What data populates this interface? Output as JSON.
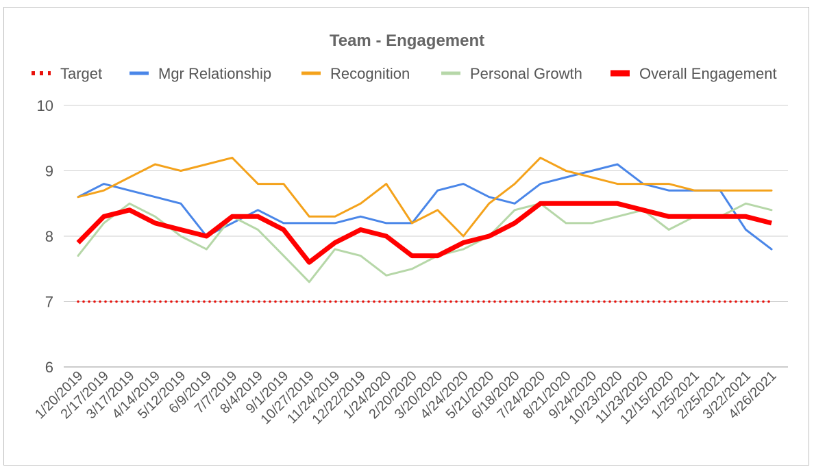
{
  "chart_data": {
    "type": "line",
    "title": "Team - Engagement",
    "xlabel": "",
    "ylabel": "",
    "ylim": [
      6,
      10
    ],
    "yticks": [
      "6",
      "7",
      "8",
      "9",
      "10"
    ],
    "grid": true,
    "legend_position": "top",
    "categories": [
      "1/20/2019",
      "2/17/2019",
      "3/17/2019",
      "4/14/2019",
      "5/12/2019",
      "6/9/2019",
      "7/7/2019",
      "8/4/2019",
      "9/1/2019",
      "10/27/2019",
      "11/24/2019",
      "12/22/2019",
      "1/24/2020",
      "2/20/2020",
      "3/20/2020",
      "4/24/2020",
      "5/21/2020",
      "6/18/2020",
      "7/24/2020",
      "8/21/2020",
      "9/24/2020",
      "10/23/2020",
      "11/23/2020",
      "12/15/2020",
      "1/25/2021",
      "2/25/2021",
      "3/22/2021",
      "4/26/2021"
    ],
    "series": [
      {
        "name": "Target",
        "color": "#e8120c",
        "style": "dotted",
        "values": [
          7,
          7,
          7,
          7,
          7,
          7,
          7,
          7,
          7,
          7,
          7,
          7,
          7,
          7,
          7,
          7,
          7,
          7,
          7,
          7,
          7,
          7,
          7,
          7,
          7,
          7,
          7,
          7
        ]
      },
      {
        "name": "Mgr Relationship",
        "color": "#4a86e8",
        "style": "solid",
        "values": [
          8.6,
          8.8,
          8.7,
          8.6,
          8.5,
          8.0,
          8.2,
          8.4,
          8.2,
          8.2,
          8.2,
          8.3,
          8.2,
          8.2,
          8.7,
          8.8,
          8.6,
          8.5,
          8.8,
          8.9,
          9.0,
          9.1,
          8.8,
          8.7,
          8.7,
          8.7,
          8.1,
          7.8
        ]
      },
      {
        "name": "Recognition",
        "color": "#f4a21b",
        "style": "solid",
        "values": [
          8.6,
          8.7,
          8.9,
          9.1,
          9.0,
          9.1,
          9.2,
          8.8,
          8.8,
          8.3,
          8.3,
          8.5,
          8.8,
          8.2,
          8.4,
          8.0,
          8.5,
          8.8,
          9.2,
          9.0,
          8.9,
          8.8,
          8.8,
          8.8,
          8.7,
          8.7,
          8.7,
          8.7
        ]
      },
      {
        "name": "Personal Growth",
        "color": "#b6d7a8",
        "style": "solid",
        "values": [
          7.7,
          8.2,
          8.5,
          8.3,
          8.0,
          7.8,
          8.3,
          8.1,
          7.7,
          7.3,
          7.8,
          7.7,
          7.4,
          7.5,
          7.7,
          7.8,
          8.0,
          8.4,
          8.5,
          8.2,
          8.2,
          8.3,
          8.4,
          8.1,
          8.3,
          8.3,
          8.5,
          8.4
        ]
      },
      {
        "name": "Overall Engagement",
        "color": "#ff0000",
        "style": "bold",
        "values": [
          7.9,
          8.3,
          8.4,
          8.2,
          8.1,
          8.0,
          8.3,
          8.3,
          8.1,
          7.6,
          7.9,
          8.1,
          8.0,
          7.7,
          7.7,
          7.9,
          8.0,
          8.2,
          8.5,
          8.5,
          8.5,
          8.5,
          8.4,
          8.3,
          8.3,
          8.3,
          8.3,
          8.2
        ]
      }
    ]
  }
}
